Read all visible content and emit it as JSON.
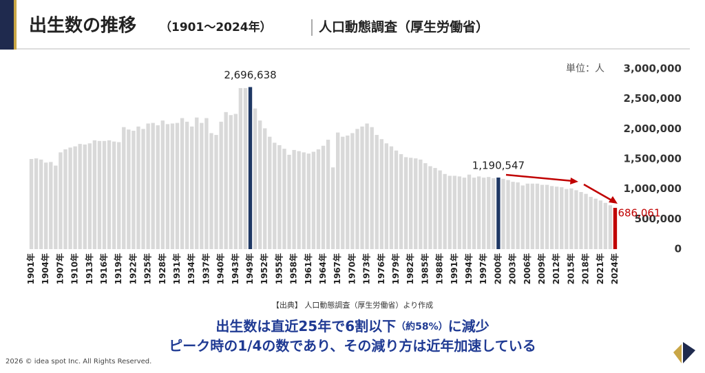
{
  "chart_data": {
    "type": "bar",
    "title": "出生数の推移",
    "subtitle": "（1901～2024年）",
    "source_title": "人口動態調査（厚生労働省）",
    "unit_label": "単位：人",
    "categories": [
      "1901年",
      null,
      null,
      "1904年",
      null,
      null,
      "1907年",
      null,
      null,
      "1910年",
      null,
      null,
      "1913年",
      null,
      null,
      "1916年",
      null,
      null,
      "1919年",
      null,
      null,
      "1922年",
      null,
      null,
      "1925年",
      null,
      null,
      "1928年",
      null,
      null,
      "1931年",
      null,
      null,
      "1934年",
      null,
      null,
      "1937年",
      null,
      null,
      "1940年",
      null,
      null,
      "1943年",
      null,
      null,
      "1949年",
      null,
      null,
      "1952年",
      null,
      null,
      "1955年",
      null,
      null,
      "1958年",
      null,
      null,
      "1961年",
      null,
      null,
      "1964年",
      null,
      null,
      "1967年",
      null,
      null,
      "1970年",
      null,
      null,
      "1973年",
      null,
      null,
      "1976年",
      null,
      null,
      "1979年",
      null,
      null,
      "1982年",
      null,
      null,
      "1985年",
      null,
      null,
      "1988年",
      null,
      null,
      "1991年",
      null,
      null,
      "1994年",
      null,
      null,
      "1997年",
      null,
      null,
      "2000年",
      null,
      null,
      "2003年",
      null,
      null,
      "2006年",
      null,
      null,
      "2009年",
      null,
      null,
      "2012年",
      null,
      null,
      "2015年",
      null,
      null,
      "2018年",
      null,
      null,
      "2021年",
      null,
      null,
      "2024年"
    ],
    "values": [
      1500000,
      1510000,
      1490000,
      1440000,
      1450000,
      1390000,
      1610000,
      1660000,
      1690000,
      1710000,
      1750000,
      1740000,
      1760000,
      1810000,
      1800000,
      1800000,
      1810000,
      1790000,
      1780000,
      2030000,
      1990000,
      1970000,
      2040000,
      2000000,
      2090000,
      2100000,
      2060000,
      2140000,
      2080000,
      2090000,
      2100000,
      2180000,
      2120000,
      2040000,
      2190000,
      2100000,
      2180000,
      1930000,
      1900000,
      2120000,
      2280000,
      2230000,
      2250000,
      2680000,
      2680000,
      2696638,
      2340000,
      2140000,
      2010000,
      1870000,
      1770000,
      1730000,
      1670000,
      1570000,
      1650000,
      1630000,
      1610000,
      1590000,
      1620000,
      1660000,
      1720000,
      1820000,
      1360000,
      1940000,
      1870000,
      1890000,
      1930000,
      2000000,
      2040000,
      2090000,
      2030000,
      1900000,
      1830000,
      1760000,
      1710000,
      1640000,
      1580000,
      1530000,
      1520000,
      1510000,
      1490000,
      1430000,
      1380000,
      1350000,
      1310000,
      1250000,
      1220000,
      1220000,
      1210000,
      1190000,
      1240000,
      1190000,
      1210000,
      1190000,
      1200000,
      1180000,
      1190547,
      1170000,
      1150000,
      1120000,
      1110000,
      1060000,
      1090000,
      1090000,
      1090000,
      1070000,
      1070000,
      1050000,
      1040000,
      1030000,
      1000000,
      1010000,
      980000,
      950000,
      920000,
      870000,
      840000,
      810000,
      770000,
      730000,
      686061
    ],
    "value_labels": [
      null,
      null,
      null,
      null,
      null,
      null,
      null,
      null,
      null,
      null,
      null,
      null,
      null,
      null,
      null,
      null,
      null,
      null,
      null,
      null,
      null,
      null,
      null,
      null,
      null,
      null,
      null,
      null,
      null,
      null,
      null,
      null,
      null,
      null,
      null,
      null,
      null,
      null,
      null,
      null,
      null,
      null,
      null,
      null,
      null,
      "2,696,638",
      null,
      null,
      null,
      null,
      null,
      null,
      null,
      null,
      null,
      null,
      null,
      null,
      null,
      null,
      null,
      null,
      null,
      null,
      null,
      null,
      null,
      null,
      null,
      null,
      null,
      null,
      null,
      null,
      null,
      null,
      null,
      null,
      null,
      null,
      null,
      null,
      null,
      null,
      null,
      null,
      null,
      null,
      null,
      null,
      null,
      null,
      null,
      null,
      null,
      null,
      "1,190,547",
      null,
      null,
      null,
      null,
      null,
      null,
      null,
      null,
      null,
      null,
      null,
      null,
      null,
      null,
      null,
      null,
      null,
      null,
      null,
      null,
      null,
      null,
      null,
      "686,061"
    ],
    "color": "#d9d9d9",
    "highlight_colors": {
      "1949年": "#1f3864",
      "2000年": "#1f3864",
      "2024年": "#c00000"
    },
    "ylim": [
      0,
      3000000
    ],
    "yticks": [
      0,
      {
        "value": 500000,
        "label": "500,000"
      },
      {
        "value": 1000000,
        "label": "1,000,000"
      },
      {
        "value": 1500000,
        "label": "1,500,000"
      },
      {
        "value": 2000000,
        "label": "2,000,000"
      },
      {
        "value": 2500000,
        "label": "2,500,000"
      },
      {
        "value": 3000000,
        "label": "3,000,000"
      }
    ],
    "grid": false
  },
  "source_note": "【出典】 人口動態調査（厚生労働省）より作成",
  "summary": {
    "line1": [
      "出生数は直近25年で6割以下",
      "（約58%）",
      "に減少"
    ],
    "line2": "ピーク時の1/4の数であり、その減り方は近年加速している"
  },
  "copyright": "2026 © idea spot Inc. All Rights Reserved."
}
